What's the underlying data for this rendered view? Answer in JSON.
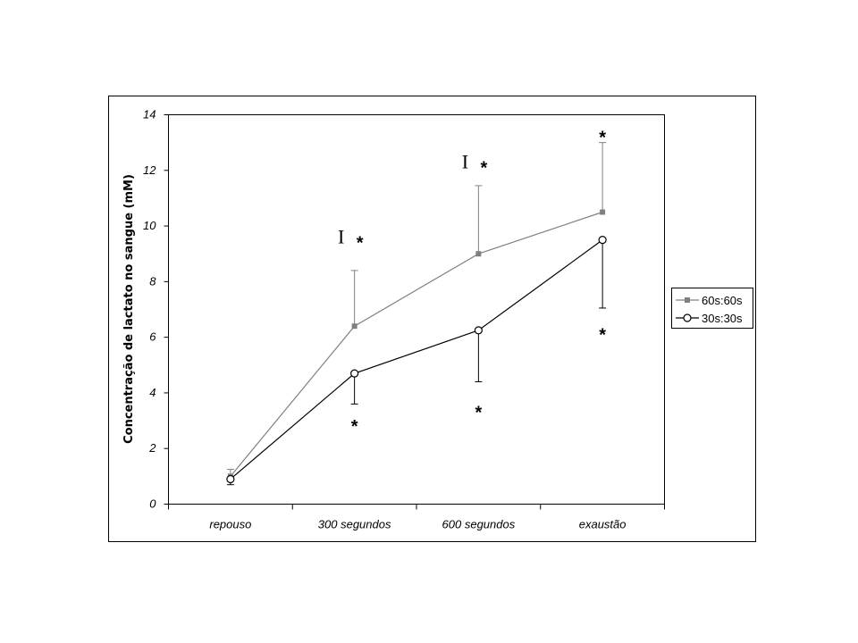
{
  "chart_data": {
    "type": "line",
    "title": "",
    "xlabel": "",
    "ylabel": "Concentração de lactato no sangue (mM)",
    "categories": [
      "repouso",
      "300 segundos",
      "600 segundos",
      "exaustão"
    ],
    "ylim": [
      0,
      14
    ],
    "yticks": [
      "0",
      "2",
      "4",
      "6",
      "8",
      "10",
      "12",
      "14"
    ],
    "grid": false,
    "legend_position": "right",
    "series": [
      {
        "name": "60s:60s",
        "values": [
          1.0,
          6.4,
          9.0,
          10.5
        ],
        "error_up": [
          0.25,
          2.0,
          2.45,
          2.5
        ],
        "error_down": [
          0,
          0,
          0,
          0
        ],
        "color": "#808080",
        "marker": "square"
      },
      {
        "name": "30s:30s",
        "values": [
          0.9,
          4.7,
          6.25,
          9.5
        ],
        "error_up": [
          0,
          0,
          0,
          0
        ],
        "error_down": [
          0.2,
          1.1,
          1.85,
          2.45
        ],
        "color": "#000000",
        "marker": "circle-open"
      }
    ],
    "annotations": [
      {
        "text": "*",
        "category": "300 segundos",
        "y": 9.5
      },
      {
        "text": "I",
        "category": "300 segundos",
        "y": 9.6
      },
      {
        "text": "*",
        "category": "600 segundos",
        "y": 12.2
      },
      {
        "text": "I",
        "category": "600 segundos",
        "y": 12.3
      },
      {
        "text": "*",
        "category": "exaustão",
        "y": 13.3
      },
      {
        "text": "*",
        "category": "300 segundos",
        "y": 2.9
      },
      {
        "text": "*",
        "category": "600 segundos",
        "y": 3.4
      },
      {
        "text": "*",
        "category": "exaustão",
        "y": 6.2
      }
    ]
  }
}
